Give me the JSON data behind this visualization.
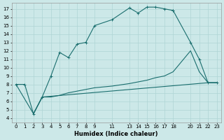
{
  "xlabel": "Humidex (Indice chaleur)",
  "bg_color": "#cce8e8",
  "grid_color": "#afd4d4",
  "line_color": "#1a6e6e",
  "xlim": [
    -0.5,
    23.5
  ],
  "ylim": [
    3.5,
    17.7
  ],
  "xticks": [
    0,
    1,
    2,
    3,
    4,
    5,
    6,
    7,
    8,
    9,
    11,
    13,
    14,
    15,
    16,
    17,
    18,
    20,
    21,
    22,
    23
  ],
  "yticks": [
    4,
    5,
    6,
    7,
    8,
    9,
    10,
    11,
    12,
    13,
    14,
    15,
    16,
    17
  ],
  "line1_x": [
    0,
    1,
    2,
    3,
    4,
    5,
    6,
    7,
    8,
    9,
    11,
    13,
    14,
    15,
    16,
    17,
    18
  ],
  "line1_y": [
    8.0,
    8.0,
    4.5,
    6.5,
    9.0,
    11.8,
    11.2,
    12.8,
    13.0,
    15.0,
    15.7,
    17.1,
    16.5,
    17.2,
    17.2,
    17.0,
    16.8
  ],
  "line2_x": [
    18,
    20,
    21,
    22,
    23
  ],
  "line2_y": [
    16.8,
    13.0,
    11.0,
    8.2,
    8.2
  ],
  "line3_x": [
    2,
    3,
    4,
    5,
    6,
    7,
    8,
    9,
    11,
    13,
    14,
    15,
    16,
    17,
    18,
    20,
    21,
    22,
    23
  ],
  "line3_y": [
    4.5,
    6.5,
    6.5,
    6.7,
    7.0,
    7.2,
    7.4,
    7.6,
    7.8,
    8.1,
    8.3,
    8.5,
    8.8,
    9.0,
    9.5,
    12.0,
    9.5,
    8.2,
    8.2
  ],
  "line4_x": [
    0,
    2,
    3,
    22,
    23
  ],
  "line4_y": [
    8.0,
    4.5,
    6.5,
    8.2,
    8.2
  ]
}
